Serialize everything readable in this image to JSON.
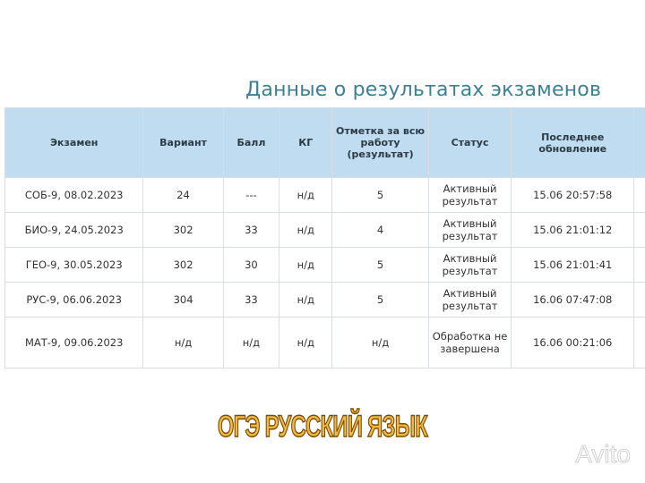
{
  "title": "Данные о результатах экзаменов",
  "headers": [
    "Экзамен",
    "Вариант",
    "Балл",
    "КГ",
    "Отметка за всю работу (результат)",
    "Статус",
    "Последнее обновление"
  ],
  "rows": [
    [
      "СОБ-9, 08.02.2023",
      "24",
      "---",
      "н/д",
      "5",
      "Активный результат",
      "15.06 20:57:58"
    ],
    [
      "БИО-9, 24.05.2023",
      "302",
      "33",
      "н/д",
      "4",
      "Активный результат",
      "15.06 21:01:12"
    ],
    [
      "ГЕО-9, 30.05.2023",
      "302",
      "30",
      "н/д",
      "5",
      "Активный результат",
      "15.06 21:01:41"
    ],
    [
      "РУС-9, 06.06.2023",
      "304",
      "33",
      "н/д",
      "5",
      "Активный результат",
      "16.06 07:47:08"
    ],
    [
      "МАТ-9, 09.06.2023",
      "н/д",
      "н/д",
      "н/д",
      "н/д",
      "Обработка не завершена",
      "16.06 00:21:06"
    ]
  ],
  "banner": "ОГЭ РУССКИЙ ЯЗЫК",
  "watermark": "Avito"
}
